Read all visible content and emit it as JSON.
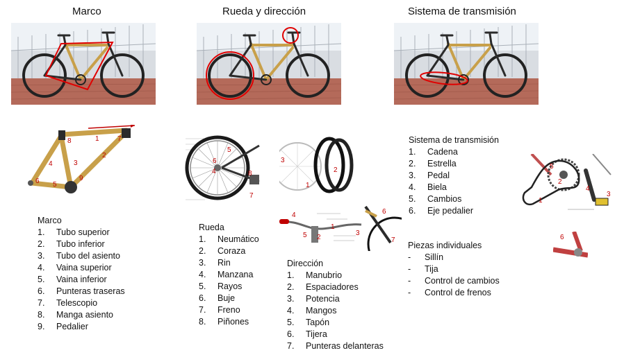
{
  "headers": {
    "frame": "Marco",
    "wheel": "Rueda y dirección",
    "drive": "Sistema de transmisión"
  },
  "colors": {
    "highlight": "#e00000",
    "bamboo": "#c8a04a",
    "frame_dark": "#2b2b2b"
  },
  "marco": {
    "title": "Marco",
    "items": [
      {
        "num": "1.",
        "label": "Tubo superior"
      },
      {
        "num": "2.",
        "label": "Tubo inferior"
      },
      {
        "num": "3.",
        "label": "Tubo del asiento"
      },
      {
        "num": "4.",
        "label": "Vaina superior"
      },
      {
        "num": "5.",
        "label": "Vaina inferior"
      },
      {
        "num": "6.",
        "label": "Punteras traseras"
      },
      {
        "num": "7.",
        "label": "Telescopio"
      },
      {
        "num": "8.",
        "label": "Manga asiento"
      },
      {
        "num": "9.",
        "label": "Pedalier"
      }
    ],
    "callouts": [
      "1",
      "2",
      "3",
      "4",
      "5",
      "6",
      "7",
      "8",
      "9"
    ]
  },
  "rueda": {
    "title": "Rueda",
    "items": [
      {
        "num": "1.",
        "label": "Neumático"
      },
      {
        "num": "2.",
        "label": "Coraza"
      },
      {
        "num": "3.",
        "label": "Rin"
      },
      {
        "num": "4.",
        "label": "Manzana"
      },
      {
        "num": "5.",
        "label": "Rayos"
      },
      {
        "num": "6.",
        "label": "Buje"
      },
      {
        "num": "7.",
        "label": "Freno"
      },
      {
        "num": "8.",
        "label": "Piñones"
      }
    ],
    "callouts": [
      "5",
      "6",
      "4",
      "8",
      "7"
    ],
    "tire_callouts": [
      "3",
      "2",
      "1"
    ]
  },
  "direccion": {
    "title": "Dirección",
    "items": [
      {
        "num": "1.",
        "label": "Manubrio"
      },
      {
        "num": "2.",
        "label": "Espaciadores"
      },
      {
        "num": "3.",
        "label": "Potencia"
      },
      {
        "num": "4.",
        "label": "Mangos"
      },
      {
        "num": "5.",
        "label": "Tapón"
      },
      {
        "num": "6.",
        "label": "Tijera"
      },
      {
        "num": "7.",
        "label": "Punteras delanteras"
      }
    ],
    "callouts": [
      "4",
      "1",
      "2",
      "3",
      "5"
    ],
    "fork_callouts": [
      "6",
      "7"
    ]
  },
  "transmision": {
    "title": "Sistema de transmisión",
    "items": [
      {
        "num": "1.",
        "label": "Cadena"
      },
      {
        "num": "2.",
        "label": "Estrella"
      },
      {
        "num": "3.",
        "label": "Pedal"
      },
      {
        "num": "4.",
        "label": "Biela"
      },
      {
        "num": "5.",
        "label": "Cambios"
      },
      {
        "num": "6.",
        "label": "Eje pedalier"
      }
    ],
    "callouts": [
      "5",
      "2",
      "4",
      "3",
      "1"
    ],
    "bb_callouts": [
      "6"
    ]
  },
  "piezas": {
    "title": "Piezas individuales",
    "items": [
      {
        "num": "-",
        "label": "Sillín"
      },
      {
        "num": "-",
        "label": "Tija"
      },
      {
        "num": "-",
        "label": "Control de cambios"
      },
      {
        "num": "-",
        "label": "Control de frenos"
      }
    ]
  }
}
